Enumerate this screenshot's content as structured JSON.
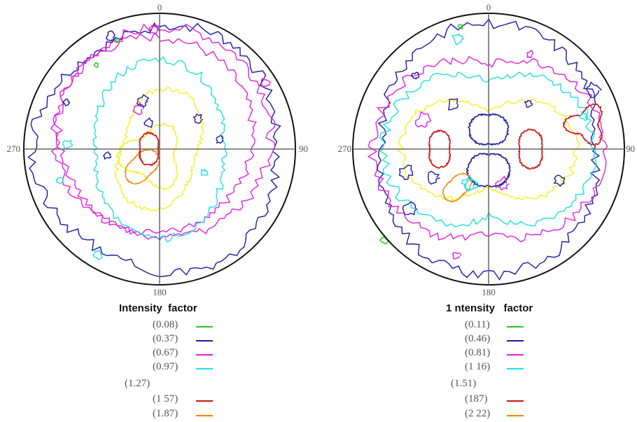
{
  "figures": [
    {
      "angles": {
        "top": "0",
        "right": "90",
        "bottom": "180",
        "left": "270"
      },
      "legend_title": "Intensity  factor",
      "legend": [
        {
          "value": "(0.08)",
          "color": "#22cc22"
        },
        {
          "value": "(0.37)",
          "color": "#1a1aa0"
        },
        {
          "value": "(0.67)",
          "color": "#e020e0"
        },
        {
          "value": "(0.97)",
          "color": "#20e0e0"
        },
        {
          "value": "(1.27)",
          "color": "#f0f020"
        },
        {
          "value": "(1 57)",
          "color": "#cc1010"
        },
        {
          "value": "(1.87)",
          "color": "#ee8800"
        }
      ]
    },
    {
      "angles": {
        "top": "0",
        "right": "90",
        "bottom": "180",
        "left": "270"
      },
      "legend_title": "1 ntensity   factor",
      "legend": [
        {
          "value": "(0.11)",
          "color": "#22cc22"
        },
        {
          "value": "(0.46)",
          "color": "#1a1aa0"
        },
        {
          "value": "(0.81)",
          "color": "#e020e0"
        },
        {
          "value": "(1 16)",
          "color": "#20e0e0"
        },
        {
          "value": "(1.51)",
          "color": "#f0f020"
        },
        {
          "value": "(187)",
          "color": "#cc1010"
        },
        {
          "value": "(2 22)",
          "color": "#ee8800"
        }
      ]
    }
  ]
}
